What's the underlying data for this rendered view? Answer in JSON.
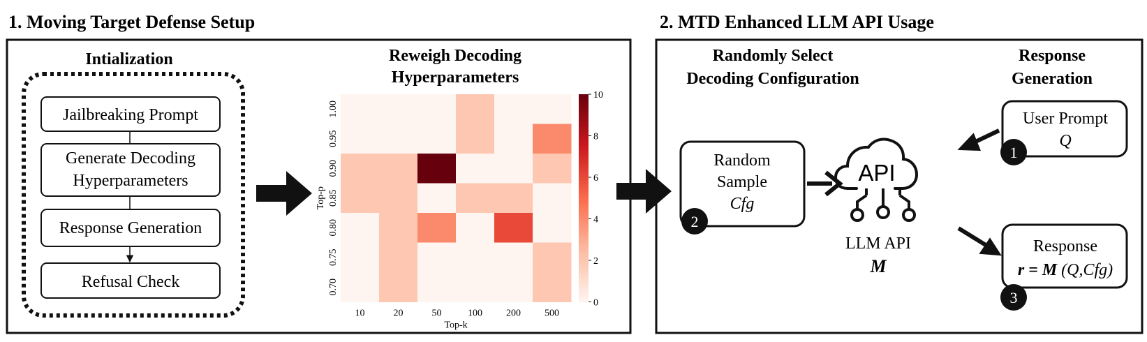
{
  "section1": {
    "title": "1. Moving Target Defense Setup",
    "init": {
      "title": "Intialization",
      "steps": [
        "Jailbreaking Prompt",
        "Generate Decoding",
        "Hyperparameters",
        "Response Generation",
        "Refusal Check"
      ]
    },
    "reweigh": {
      "title_line1": "Reweigh Decoding",
      "title_line2": "Hyperparameters"
    }
  },
  "section2": {
    "title": "2. MTD Enhanced LLM API Usage",
    "select": {
      "title_line1": "Randomly Select",
      "title_line2": "Decoding Configuration"
    },
    "random_sample": {
      "line1": "Random",
      "line2": "Sample",
      "line3": "Cfg",
      "badge": "2"
    },
    "api": {
      "icon_text": "API",
      "label": "LLM API",
      "symbol": "M"
    },
    "response_gen": {
      "title_line1": "Response",
      "title_line2": "Generation"
    },
    "user_prompt": {
      "line1": "User Prompt",
      "line2": "Q",
      "badge": "1"
    },
    "response": {
      "line1": "Response",
      "line2_bold": "r = M",
      "line2_italic": "(Q,Cfg)",
      "badge": "3"
    }
  },
  "chart_data": {
    "type": "heatmap",
    "xlabel": "Top-k",
    "ylabel": "Top-p",
    "x_categories": [
      "10",
      "20",
      "50",
      "100",
      "200",
      "500"
    ],
    "y_categories": [
      "1.00",
      "0.95",
      "0.90",
      "0.85",
      "0.80",
      "0.75",
      "0.70"
    ],
    "values": [
      [
        0,
        0,
        0,
        2,
        0,
        0
      ],
      [
        0,
        0,
        0,
        2,
        0,
        4
      ],
      [
        2,
        2,
        10,
        0,
        0,
        2
      ],
      [
        2,
        2,
        0,
        2,
        2,
        0
      ],
      [
        0,
        2,
        4,
        0,
        6,
        0
      ],
      [
        0,
        2,
        0,
        0,
        0,
        2
      ],
      [
        0,
        2,
        0,
        0,
        0,
        2
      ]
    ],
    "colorbar": {
      "min": 0,
      "max": 10,
      "ticks": [
        "0",
        "2",
        "4",
        "6",
        "8",
        "10"
      ]
    },
    "colormap": [
      "#fff5f0",
      "#fcbba1",
      "#fb6a4a",
      "#cb181d",
      "#67000d"
    ]
  }
}
